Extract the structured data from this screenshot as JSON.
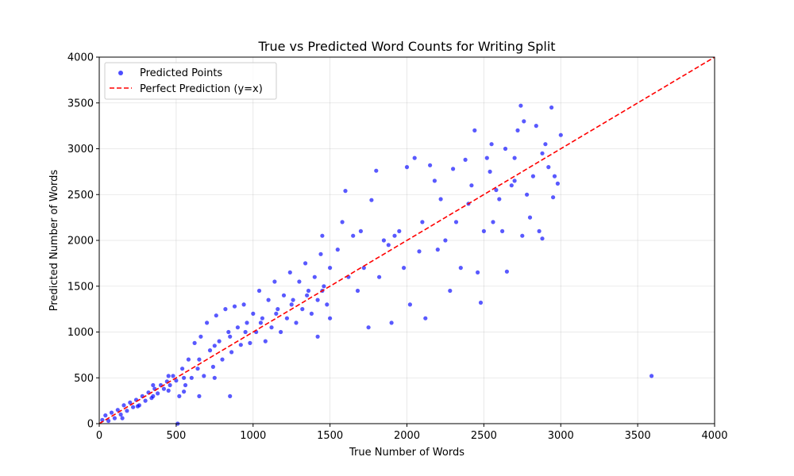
{
  "chart_data": {
    "type": "scatter",
    "title": "True vs Predicted Word Counts for Writing Split",
    "xlabel": "True Number of Words",
    "ylabel": "Predicted Number of Words",
    "xlim": [
      0,
      4000
    ],
    "ylim": [
      0,
      4000
    ],
    "xticks": [
      0,
      500,
      1000,
      1500,
      2000,
      2500,
      3000,
      3500,
      4000
    ],
    "yticks": [
      0,
      500,
      1000,
      1500,
      2000,
      2500,
      3000,
      3500,
      4000
    ],
    "xtick_labels": [
      "0",
      "500",
      "1000",
      "1500",
      "2000",
      "2500",
      "3000",
      "3500",
      "4000"
    ],
    "ytick_labels": [
      "0",
      "500",
      "1000",
      "1500",
      "2000",
      "2500",
      "3000",
      "3500",
      "4000"
    ],
    "grid": true,
    "legend_position": "top-left",
    "series": [
      {
        "name": "Predicted Points",
        "kind": "scatter",
        "color": "#0000ff",
        "points": [
          [
            20,
            40
          ],
          [
            40,
            90
          ],
          [
            60,
            30
          ],
          [
            80,
            120
          ],
          [
            100,
            60
          ],
          [
            120,
            150
          ],
          [
            140,
            100
          ],
          [
            160,
            200
          ],
          [
            180,
            140
          ],
          [
            200,
            230
          ],
          [
            220,
            180
          ],
          [
            240,
            260
          ],
          [
            260,
            200
          ],
          [
            280,
            300
          ],
          [
            300,
            250
          ],
          [
            320,
            340
          ],
          [
            340,
            280
          ],
          [
            360,
            380
          ],
          [
            380,
            330
          ],
          [
            400,
            420
          ],
          [
            420,
            380
          ],
          [
            440,
            460
          ],
          [
            460,
            420
          ],
          [
            480,
            520
          ],
          [
            500,
            470
          ],
          [
            510,
            0
          ],
          [
            520,
            300
          ],
          [
            540,
            600
          ],
          [
            560,
            420
          ],
          [
            580,
            700
          ],
          [
            600,
            500
          ],
          [
            620,
            880
          ],
          [
            640,
            600
          ],
          [
            660,
            950
          ],
          [
            680,
            520
          ],
          [
            700,
            1100
          ],
          [
            720,
            800
          ],
          [
            740,
            620
          ],
          [
            760,
            1180
          ],
          [
            780,
            900
          ],
          [
            800,
            700
          ],
          [
            820,
            1250
          ],
          [
            840,
            1000
          ],
          [
            860,
            780
          ],
          [
            880,
            1280
          ],
          [
            900,
            1050
          ],
          [
            920,
            860
          ],
          [
            940,
            1300
          ],
          [
            960,
            1100
          ],
          [
            980,
            880
          ],
          [
            1000,
            1200
          ],
          [
            1020,
            1000
          ],
          [
            1040,
            1450
          ],
          [
            1060,
            1150
          ],
          [
            1080,
            900
          ],
          [
            1100,
            1350
          ],
          [
            1120,
            1050
          ],
          [
            1140,
            1550
          ],
          [
            1160,
            1250
          ],
          [
            1180,
            1000
          ],
          [
            1200,
            1400
          ],
          [
            1220,
            1150
          ],
          [
            1240,
            1650
          ],
          [
            1260,
            1350
          ],
          [
            1280,
            1100
          ],
          [
            1300,
            1550
          ],
          [
            1320,
            1250
          ],
          [
            1340,
            1750
          ],
          [
            1360,
            1450
          ],
          [
            1380,
            1200
          ],
          [
            1400,
            1600
          ],
          [
            1420,
            1350
          ],
          [
            1440,
            1850
          ],
          [
            1460,
            1500
          ],
          [
            1480,
            1300
          ],
          [
            1500,
            1700
          ],
          [
            1450,
            2050
          ],
          [
            1420,
            950
          ],
          [
            1500,
            1150
          ],
          [
            1550,
            1900
          ],
          [
            1580,
            2200
          ],
          [
            1600,
            2540
          ],
          [
            1620,
            1600
          ],
          [
            1650,
            2050
          ],
          [
            1680,
            1450
          ],
          [
            1700,
            2100
          ],
          [
            1720,
            1700
          ],
          [
            1750,
            1050
          ],
          [
            1770,
            2440
          ],
          [
            1800,
            2760
          ],
          [
            1820,
            1600
          ],
          [
            1850,
            2000
          ],
          [
            1880,
            1950
          ],
          [
            1900,
            1100
          ],
          [
            1920,
            2050
          ],
          [
            1950,
            2100
          ],
          [
            1980,
            1700
          ],
          [
            2000,
            2800
          ],
          [
            2020,
            1300
          ],
          [
            2050,
            2900
          ],
          [
            2080,
            1880
          ],
          [
            2100,
            2200
          ],
          [
            2120,
            1150
          ],
          [
            2150,
            2820
          ],
          [
            2180,
            2650
          ],
          [
            2200,
            1900
          ],
          [
            2220,
            2450
          ],
          [
            2250,
            2000
          ],
          [
            2280,
            1450
          ],
          [
            2300,
            2780
          ],
          [
            2320,
            2200
          ],
          [
            2350,
            1700
          ],
          [
            2380,
            2880
          ],
          [
            2400,
            2400
          ],
          [
            2420,
            2600
          ],
          [
            2440,
            3200
          ],
          [
            2460,
            1650
          ],
          [
            2480,
            1320
          ],
          [
            2500,
            2100
          ],
          [
            2520,
            2900
          ],
          [
            2540,
            2750
          ],
          [
            2560,
            2200
          ],
          [
            2580,
            2550
          ],
          [
            2600,
            2450
          ],
          [
            2620,
            2100
          ],
          [
            2640,
            3000
          ],
          [
            2650,
            1660
          ],
          [
            2680,
            2600
          ],
          [
            2700,
            2900
          ],
          [
            2720,
            3200
          ],
          [
            2740,
            3470
          ],
          [
            2750,
            2050
          ],
          [
            2760,
            3300
          ],
          [
            2780,
            2500
          ],
          [
            2800,
            2250
          ],
          [
            2820,
            2700
          ],
          [
            2840,
            3250
          ],
          [
            2860,
            2100
          ],
          [
            2880,
            2950
          ],
          [
            2900,
            3050
          ],
          [
            2920,
            2800
          ],
          [
            2940,
            3450
          ],
          [
            2950,
            2470
          ],
          [
            2960,
            2700
          ],
          [
            2980,
            2620
          ],
          [
            3000,
            3150
          ],
          [
            2880,
            2020
          ],
          [
            2700,
            2650
          ],
          [
            2550,
            3050
          ],
          [
            3590,
            520
          ],
          [
            150,
            60
          ],
          [
            250,
            190
          ],
          [
            350,
            300
          ],
          [
            450,
            360
          ],
          [
            550,
            500
          ],
          [
            650,
            700
          ],
          [
            750,
            850
          ],
          [
            850,
            950
          ],
          [
            950,
            1000
          ],
          [
            1050,
            1100
          ],
          [
            1150,
            1200
          ],
          [
            1250,
            1300
          ],
          [
            1350,
            1400
          ],
          [
            1450,
            1450
          ],
          [
            350,
            420
          ],
          [
            450,
            520
          ],
          [
            550,
            350
          ],
          [
            650,
            300
          ],
          [
            750,
            500
          ],
          [
            850,
            300
          ]
        ]
      },
      {
        "name": "Perfect Prediction (y=x)",
        "kind": "line",
        "color": "#ff0000",
        "line_style": "dashed",
        "points": [
          [
            0,
            0
          ],
          [
            4000,
            4000
          ]
        ]
      }
    ]
  }
}
